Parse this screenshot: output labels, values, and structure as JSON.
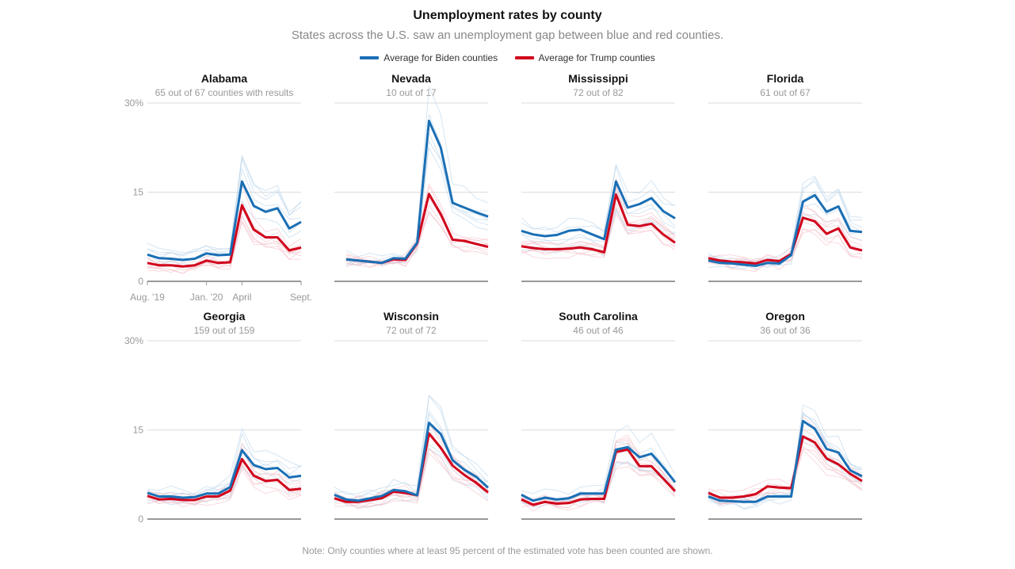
{
  "header": {
    "title": "Unemployment rates by county",
    "subtitle": "States across the U.S. saw an unemployment gap between blue and red counties."
  },
  "legend": {
    "biden_label": "Average for Biden counties",
    "trump_label": "Average for Trump counties"
  },
  "colors": {
    "biden": "#1a6fb5",
    "trump": "#d0021b",
    "biden_light": "#b9d3ea",
    "trump_light": "#f3c0c8",
    "grid": "#dddddd",
    "axis": "#333333"
  },
  "note": "Note: Only counties where at least 95 percent of the estimated vote has been counted are shown.",
  "chart_data": {
    "type": "line",
    "y_unit": "Unemployment rate (%)",
    "ylim": [
      0,
      30
    ],
    "y_ticks": [
      0,
      15,
      30
    ],
    "y_tick_labels": [
      "0",
      "15",
      "30%"
    ],
    "x_tick_labels": [
      "Aug. '19",
      "Jan. '20",
      "April",
      "Sept."
    ],
    "x_tick_index": [
      0,
      5,
      8,
      13
    ],
    "months": [
      "Aug 2019",
      "Sep 2019",
      "Oct 2019",
      "Nov 2019",
      "Dec 2019",
      "Jan 2020",
      "Feb 2020",
      "Mar 2020",
      "Apr 2020",
      "May 2020",
      "Jun 2020",
      "Jul 2020",
      "Aug 2020",
      "Sep 2020"
    ],
    "panels": [
      {
        "state": "Alabama",
        "counties": "65 out of 67 counties with results",
        "biden": [
          4.5,
          3.9,
          3.8,
          3.6,
          3.8,
          4.7,
          4.4,
          4.5,
          16.8,
          12.7,
          11.7,
          12.3,
          8.9,
          10.0
        ],
        "trump": [
          3.1,
          2.7,
          2.7,
          2.5,
          2.7,
          3.5,
          3.1,
          3.2,
          12.8,
          8.7,
          7.4,
          7.4,
          5.2,
          5.7
        ]
      },
      {
        "state": "Nevada",
        "counties": "10 out of 17",
        "biden": [
          3.7,
          3.5,
          3.3,
          3.1,
          3.9,
          3.8,
          6.5,
          27.0,
          22.5,
          13.2,
          12.4,
          11.6,
          10.9
        ],
        "trump": [
          3.7,
          3.5,
          3.3,
          3.1,
          3.7,
          3.6,
          6.4,
          14.7,
          11.3,
          7.0,
          6.8,
          6.3,
          5.8
        ],
        "x_start": 1
      },
      {
        "state": "Mississippi",
        "counties": "72 out of 82",
        "biden": [
          8.5,
          7.9,
          7.6,
          7.8,
          8.5,
          8.7,
          7.9,
          7.1,
          16.8,
          12.4,
          13.0,
          14.0,
          11.8,
          10.6
        ],
        "trump": [
          5.9,
          5.6,
          5.4,
          5.4,
          5.5,
          5.7,
          5.4,
          4.9,
          14.6,
          9.5,
          9.3,
          9.7,
          7.9,
          6.5
        ]
      },
      {
        "state": "Florida",
        "counties": "61 out of 67",
        "biden": [
          3.5,
          3.1,
          3.0,
          2.8,
          2.6,
          3.1,
          3.0,
          4.4,
          13.4,
          14.5,
          11.7,
          12.6,
          8.5,
          8.3
        ],
        "trump": [
          3.9,
          3.5,
          3.3,
          3.2,
          3.0,
          3.6,
          3.4,
          4.6,
          10.7,
          10.1,
          8.0,
          8.9,
          5.7,
          5.2
        ]
      },
      {
        "state": "Georgia",
        "counties": "159 out of 159",
        "biden": [
          4.4,
          3.8,
          3.8,
          3.6,
          3.7,
          4.3,
          4.3,
          5.4,
          11.6,
          9.1,
          8.4,
          8.6,
          7.0,
          7.3
        ],
        "trump": [
          3.9,
          3.3,
          3.4,
          3.2,
          3.2,
          3.8,
          3.8,
          4.8,
          10.1,
          7.3,
          6.4,
          6.6,
          4.9,
          5.1
        ]
      },
      {
        "state": "Wisconsin",
        "counties": "72 out of 72",
        "biden": [
          4.1,
          3.3,
          3.1,
          3.5,
          3.9,
          4.9,
          4.7,
          4.0,
          16.2,
          14.3,
          9.9,
          8.3,
          7.1,
          5.3
        ],
        "trump": [
          3.5,
          2.9,
          2.9,
          3.2,
          3.5,
          4.6,
          4.4,
          4.0,
          14.4,
          12.0,
          9.0,
          7.4,
          6.1,
          4.5
        ]
      },
      {
        "state": "South Carolina",
        "counties": "46 out of 46",
        "biden": [
          4.1,
          3.1,
          3.6,
          3.3,
          3.5,
          4.3,
          4.3,
          4.3,
          11.7,
          12.1,
          10.4,
          11.0,
          8.7,
          6.2
        ],
        "trump": [
          3.3,
          2.4,
          2.9,
          2.6,
          2.7,
          3.3,
          3.4,
          3.4,
          11.3,
          11.7,
          8.9,
          8.9,
          6.8,
          4.7
        ]
      },
      {
        "state": "Oregon",
        "counties": "36 out of 36",
        "biden": [
          3.8,
          3.1,
          3.0,
          2.9,
          2.9,
          3.8,
          3.8,
          3.8,
          16.5,
          15.2,
          11.8,
          11.2,
          8.2,
          7.2
        ],
        "trump": [
          4.4,
          3.6,
          3.6,
          3.8,
          4.2,
          5.5,
          5.3,
          5.2,
          13.9,
          12.9,
          10.2,
          9.2,
          7.6,
          6.4
        ]
      }
    ]
  }
}
